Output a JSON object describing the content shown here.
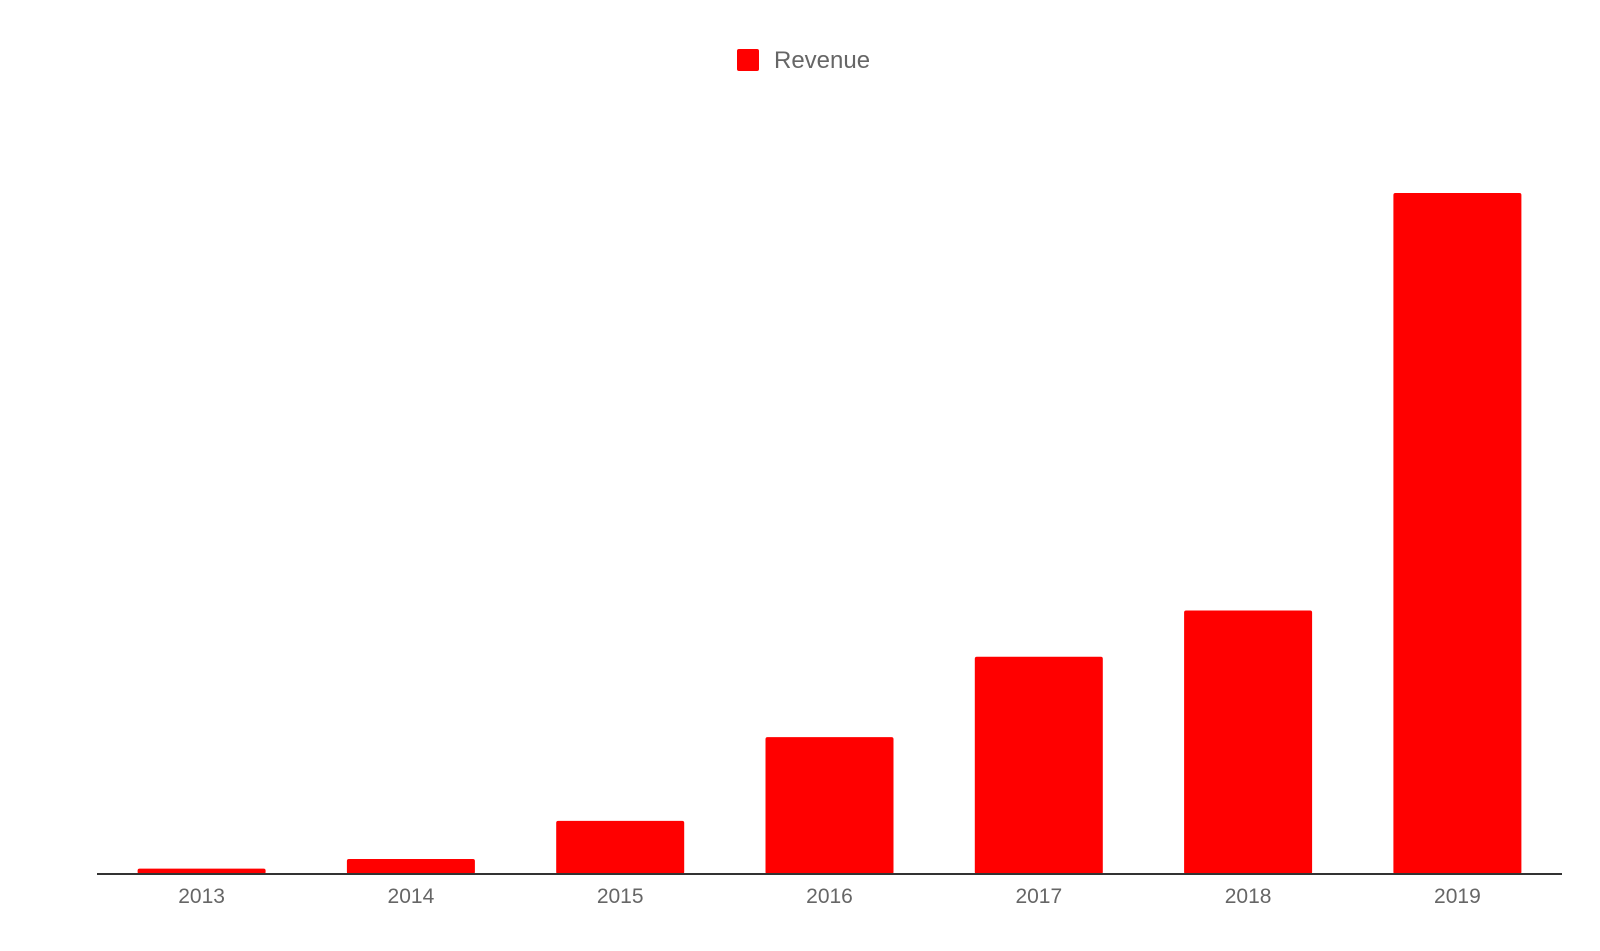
{
  "chart_data": {
    "type": "bar",
    "categories": [
      "2013",
      "2014",
      "2015",
      "2016",
      "2017",
      "2018",
      "2019"
    ],
    "series": [
      {
        "name": "Revenue",
        "color": "#ff0000",
        "values": [
          0.8,
          2.2,
          7.8,
          20.1,
          31.9,
          38.7,
          100
        ]
      }
    ],
    "ylim": [
      0,
      100
    ],
    "grid": false,
    "legend": "top-center",
    "axis_color": "#333333",
    "label_color": "#666666"
  }
}
